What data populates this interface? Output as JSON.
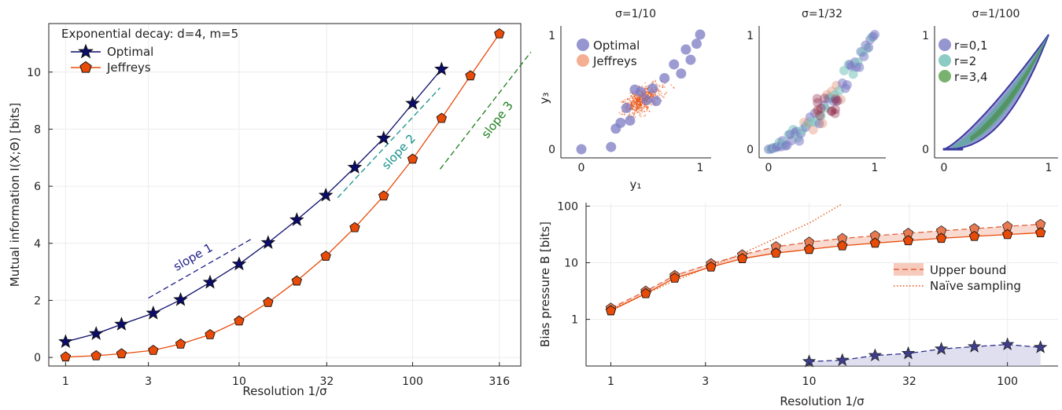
{
  "chart_data": [
    {
      "type": "line",
      "panel": "mutual-information",
      "annotation": "Exponential decay: d=4, m=5",
      "xlabel": "Resolution 1/σ",
      "ylabel": "Mutual information I(X;Θ) [bits]",
      "xscale": "log",
      "xticks": [
        1,
        3,
        10,
        32,
        100,
        316
      ],
      "xtick_labels": [
        "1",
        "3",
        "10",
        "32",
        "100",
        "316"
      ],
      "yticks": [
        0,
        2,
        4,
        6,
        8,
        10
      ],
      "xlim": [
        0.8,
        420
      ],
      "ylim": [
        -0.3,
        11.7
      ],
      "grid": true,
      "legend_position": "top-left",
      "series": [
        {
          "name": "Optimal",
          "color": "#0b0b6b",
          "marker": "star",
          "x": [
            1,
            1.5,
            2.1,
            3.2,
            4.6,
            6.8,
            10,
            14.7,
            21.5,
            31.6,
            46.4,
            68.1,
            100,
            146.8
          ],
          "y": [
            0.55,
            0.83,
            1.16,
            1.55,
            2.02,
            2.63,
            3.27,
            4.02,
            4.82,
            5.68,
            6.66,
            7.68,
            8.9,
            10.1
          ]
        },
        {
          "name": "Jeffreys",
          "color": "#e84b08",
          "marker": "pentagon",
          "x": [
            1,
            1.5,
            2.1,
            3.2,
            4.6,
            6.8,
            10,
            14.7,
            21.5,
            31.6,
            46.4,
            68.1,
            100,
            146.8,
            215.4,
            316.2
          ],
          "y": [
            0.02,
            0.06,
            0.13,
            0.25,
            0.47,
            0.8,
            1.28,
            1.93,
            2.68,
            3.55,
            4.55,
            5.66,
            6.95,
            8.38,
            9.87,
            11.34
          ]
        }
      ],
      "reference_lines": [
        {
          "label": "slope 1",
          "color": "#1c1c86",
          "x": [
            3,
            11.7
          ],
          "y": [
            2.08,
            4.14
          ]
        },
        {
          "label": "slope 2",
          "color": "#16908a",
          "x": [
            37,
            144
          ],
          "y": [
            5.6,
            9.45
          ]
        },
        {
          "label": "slope 3",
          "color": "#1d7d1d",
          "x": [
            144,
            480
          ],
          "y": [
            6.6,
            10.7
          ]
        }
      ]
    },
    {
      "type": "scatter",
      "panel": "samples-1",
      "title": "σ=1/10",
      "xlabel": "y₁",
      "ylabel": "y₃",
      "xticks": [
        0,
        1
      ],
      "yticks": [
        0,
        1
      ],
      "xlim": [
        -0.1,
        1.1
      ],
      "ylim": [
        -0.1,
        1.1
      ],
      "legend_position": "top-left",
      "series": [
        {
          "name": "Optimal",
          "color": "#7b7bc4",
          "x": [
            0,
            0.25,
            0.29,
            0.33,
            0.38,
            0.41,
            0.45,
            0.5,
            0.55,
            0.6,
            0.63,
            0.7,
            0.78,
            0.84,
            0.88,
            0.92,
            0.97,
            1.0
          ],
          "y": [
            0,
            0.02,
            0.18,
            0.23,
            0.36,
            0.25,
            0.52,
            0.5,
            0.43,
            0.53,
            0.42,
            0.62,
            0.74,
            0.66,
            0.87,
            0.78,
            0.92,
            1.0
          ]
        },
        {
          "name": "Jeffreys",
          "color": "#f3a585",
          "x": [
            0.5
          ],
          "y": [
            0.4
          ]
        }
      ]
    },
    {
      "type": "scatter",
      "panel": "samples-2",
      "title": "σ=1/32",
      "xticks": [
        0,
        1
      ],
      "yticks": [
        0,
        1
      ],
      "xlim": [
        -0.1,
        1.1
      ],
      "ylim": [
        -0.1,
        1.1
      ]
    },
    {
      "type": "scatter",
      "panel": "samples-3",
      "title": "σ=1/100",
      "xticks": [
        0,
        1
      ],
      "yticks": [
        0,
        1
      ],
      "xlim": [
        -0.1,
        1.1
      ],
      "ylim": [
        -0.1,
        1.1
      ],
      "legend_position": "top-left",
      "series": [
        {
          "name": "r=0,1",
          "color": "#7b7bc4"
        },
        {
          "name": "r=2",
          "color": "#7fc7bf"
        },
        {
          "name": "r=3,4",
          "color": "#6aa85e"
        }
      ]
    },
    {
      "type": "line",
      "panel": "bias-pressure",
      "xlabel": "Resolution 1/σ",
      "ylabel": "Bias pressure B [bits]",
      "xscale": "log",
      "yscale": "log",
      "xticks": [
        1,
        3,
        10,
        32,
        100
      ],
      "xtick_labels": [
        "1",
        "3",
        "10",
        "32",
        "100"
      ],
      "yticks": [
        1,
        10,
        100
      ],
      "ytick_labels": [
        "1",
        "10",
        "100"
      ],
      "xlim": [
        0.75,
        180
      ],
      "ylim": [
        0.15,
        115
      ],
      "grid": true,
      "legend_position": "right",
      "series": [
        {
          "name": "Optimal",
          "color": "#2e2e88",
          "marker": "star",
          "dashed": true,
          "x": [
            10,
            14.7,
            21.5,
            31.6,
            46.4,
            68.1,
            100,
            146.8
          ],
          "y": [
            0.18,
            0.19,
            0.23,
            0.25,
            0.3,
            0.33,
            0.36,
            0.32
          ]
        },
        {
          "name": "Jeffreys",
          "color": "#e84b08",
          "marker": "pentagon",
          "x": [
            1,
            1.5,
            2.1,
            3.2,
            4.6,
            6.8,
            10,
            14.7,
            21.5,
            31.6,
            46.4,
            68.1,
            100,
            146.8
          ],
          "y": [
            1.42,
            2.85,
            5.35,
            8.4,
            11.8,
            14.8,
            17.2,
            19.9,
            22.2,
            24.5,
            27,
            29.2,
            31.5,
            33.8
          ]
        },
        {
          "name": "Upper bound",
          "color": "#e2613a",
          "marker": "pentagon",
          "dashed": true,
          "x": [
            1,
            1.5,
            2.1,
            3.2,
            4.6,
            6.8,
            10,
            14.7,
            21.5,
            31.6,
            46.4,
            68.1,
            100,
            146.8
          ],
          "y": [
            1.58,
            3.15,
            5.95,
            9.6,
            13.8,
            19.2,
            23.1,
            26.8,
            30,
            33.1,
            36.5,
            40,
            43.8,
            47.7
          ]
        },
        {
          "name": "Naïve sampling",
          "color": "#e84b08",
          "dotted": true,
          "x": [
            1,
            2.1,
            4.6,
            10,
            14.7
          ],
          "y": [
            1.5,
            4.8,
            14.5,
            50,
            110
          ]
        }
      ],
      "legend": [
        "Upper bound",
        "Naïve sampling"
      ]
    }
  ]
}
